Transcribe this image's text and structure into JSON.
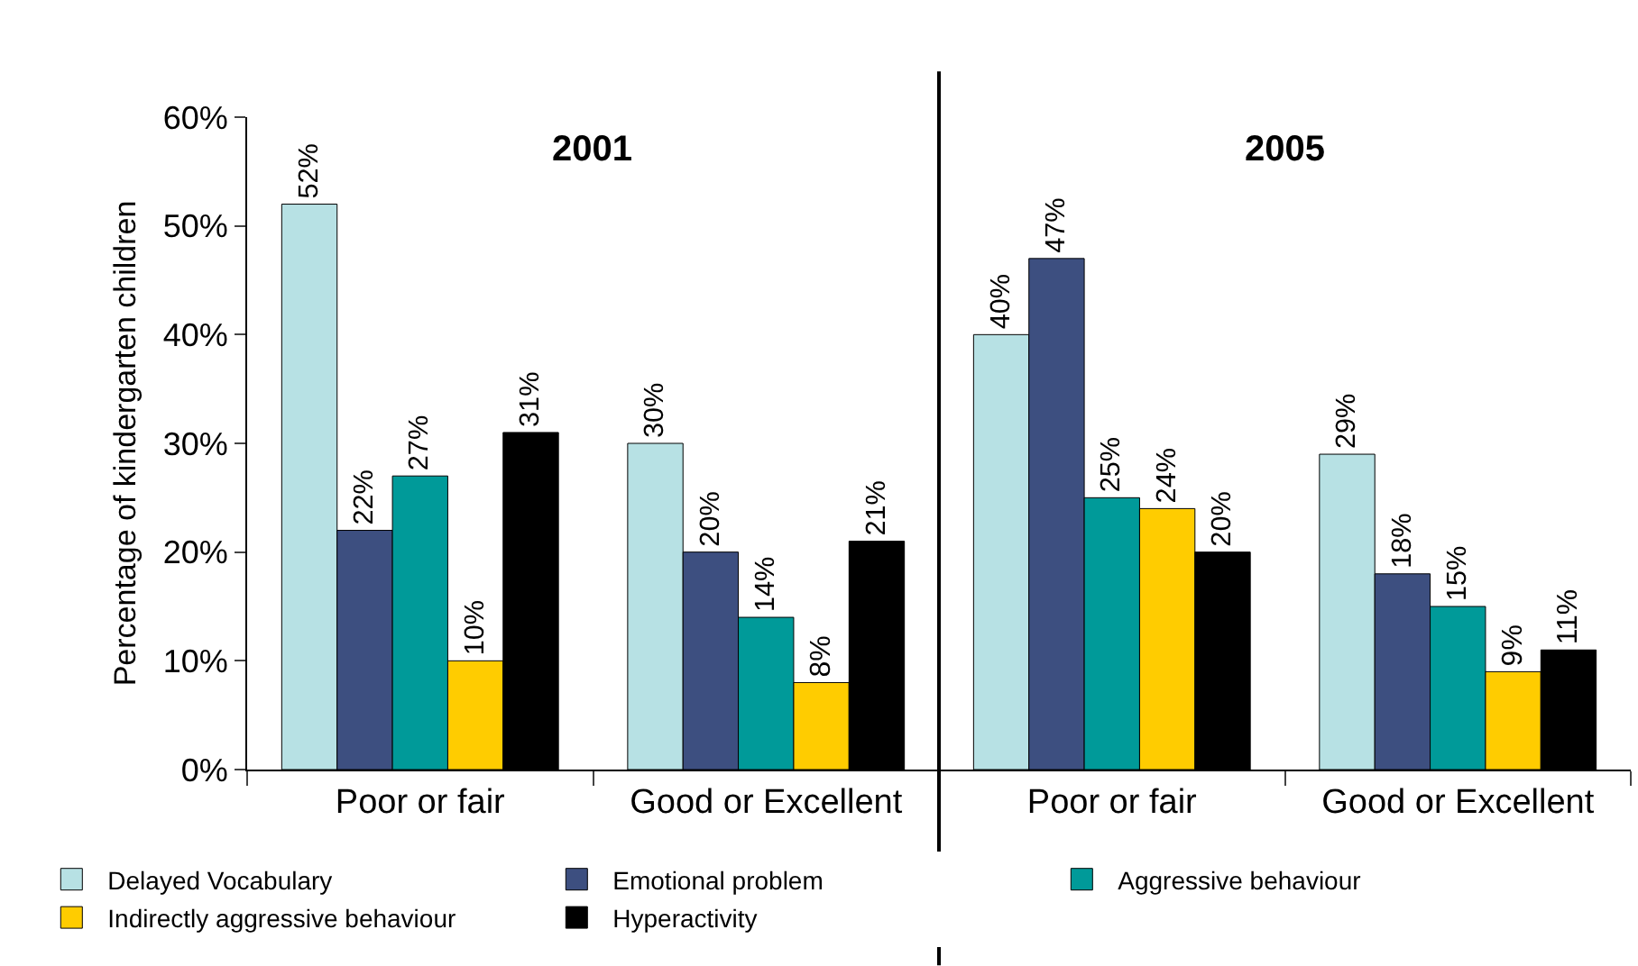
{
  "chart_data": {
    "type": "bar",
    "ylabel": "Percentage of kindergarten children",
    "categories": [
      "Poor or fair",
      "Good or Excellent",
      "Poor or fair",
      "Good or Excellent"
    ],
    "annotations": [
      "2001",
      "2005"
    ],
    "ylim": [
      0,
      60
    ],
    "yticks": [
      {
        "value": 0,
        "label": "0%"
      },
      {
        "value": 10,
        "label": "10%"
      },
      {
        "value": 20,
        "label": "20%"
      },
      {
        "value": 30,
        "label": "30%"
      },
      {
        "value": 40,
        "label": "40%"
      },
      {
        "value": 50,
        "label": "50%"
      },
      {
        "value": 60,
        "label": "60%"
      }
    ],
    "legend": "bottom",
    "series": [
      {
        "name": "Delayed Vocabulary",
        "color": "#b7e1e4",
        "values": [
          52,
          30,
          40,
          29
        ],
        "value_labels": [
          "52%",
          "30%",
          "40%",
          "29%"
        ]
      },
      {
        "name": "Emotional problem",
        "color": "#3d4f80",
        "values": [
          22,
          20,
          47,
          18
        ],
        "value_labels": [
          "22%",
          "20%",
          "47%",
          "18%"
        ]
      },
      {
        "name": "Aggressive behaviour",
        "color": "#009a99",
        "values": [
          27,
          14,
          25,
          15
        ],
        "value_labels": [
          "27%",
          "14%",
          "25%",
          "15%"
        ]
      },
      {
        "name": "Indirectly aggressive behaviour",
        "color": "#ffcc00",
        "values": [
          10,
          8,
          24,
          9
        ],
        "value_labels": [
          "10%",
          "8%",
          "24%",
          "9%"
        ]
      },
      {
        "name": "Hyperactivity",
        "color": "#000000",
        "values": [
          31,
          21,
          20,
          11
        ],
        "value_labels": [
          "31%",
          "21%",
          "20%",
          "11%"
        ]
      }
    ]
  }
}
